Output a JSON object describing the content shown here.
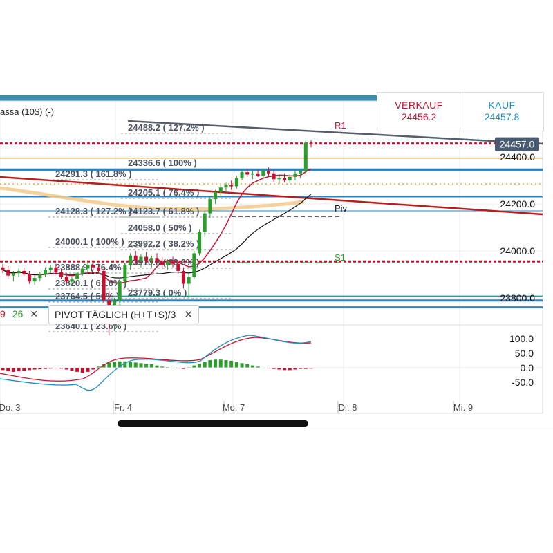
{
  "header": {
    "instrument": "assa (10$) (-)",
    "sell_label": "VERKAUF",
    "sell_price": "24456.2",
    "buy_label": "KAUF",
    "buy_price": "24457.8"
  },
  "price_axis": {
    "current": "24457.0",
    "ticks": [
      "24400.0",
      "24200.0",
      "24000.0",
      "23800.0"
    ]
  },
  "pivot_labels": {
    "r1": "R1",
    "piv": "Piv",
    "s1": "S1"
  },
  "fib_labels": [
    "24488.2 ( 127.2% )",
    "24336.6 ( 100% )",
    "24291.3 ( 161.8% )",
    "24205.1 ( 76.4% )",
    "24128.3 ( 127.2% )",
    "24123.7 ( 61.8% )",
    "24058.0 ( 50% )",
    "24000.1 ( 100% )",
    "23992.2 ( 38.2% )",
    "23910.8 ( 23.6% )",
    "23888.9 ( 76.4% )",
    "23820.1 ( 61.8% )",
    "23779.3 ( 0% )",
    "23764.5 ( 50% )",
    "23640.1 ( 23.6% )"
  ],
  "legend": {
    "ma_fast": "9",
    "ma_slow": "26",
    "close": "✕",
    "pivot_text": "PIVOT  TÄGLICH  (H+T+S)/3",
    "pivot_close": "✕"
  },
  "oscillator_axis": [
    "100.0",
    "50.0",
    "0.0",
    "-50.0"
  ],
  "time_axis": [
    "Do. 3",
    "Fr. 4",
    "Mo. 7",
    "Di. 8",
    "Mi. 9"
  ],
  "colors": {
    "sell": "#c8102e",
    "buy": "#1d8fc4",
    "up_candle": "#2a9d2a",
    "down_candle": "#c8102e",
    "pivot_line": "#2e86c1",
    "header_bar": "#3a8fae"
  },
  "chart_data": {
    "type": "candlestick",
    "timeframe_labels": [
      "Do. 3",
      "Fr. 4",
      "Mo. 7",
      "Di. 8",
      "Mi. 9"
    ],
    "y_range": [
      23620,
      24520
    ],
    "current_price": 24457.0,
    "resistance_r1": 24460,
    "pivot": 24170,
    "support_s1": 23955,
    "candles": [
      [
        23930,
        23945,
        23905,
        23920
      ],
      [
        23920,
        23935,
        23880,
        23895
      ],
      [
        23895,
        23915,
        23870,
        23905
      ],
      [
        23905,
        23925,
        23890,
        23915
      ],
      [
        23915,
        23930,
        23895,
        23900
      ],
      [
        23900,
        23915,
        23860,
        23870
      ],
      [
        23870,
        23895,
        23855,
        23885
      ],
      [
        23885,
        23910,
        23870,
        23900
      ],
      [
        23900,
        23930,
        23890,
        23920
      ],
      [
        23920,
        23940,
        23905,
        23930
      ],
      [
        23930,
        23945,
        23900,
        23910
      ],
      [
        23910,
        23925,
        23880,
        23890
      ],
      [
        23890,
        23905,
        23860,
        23870
      ],
      [
        23870,
        23890,
        23850,
        23880
      ],
      [
        23880,
        23910,
        23870,
        23905
      ],
      [
        23905,
        23935,
        23895,
        23925
      ],
      [
        23925,
        23950,
        23910,
        23940
      ],
      [
        23940,
        23960,
        23920,
        23930
      ],
      [
        23930,
        23945,
        23905,
        23915
      ],
      [
        23915,
        23925,
        23780,
        23790
      ],
      [
        23790,
        23830,
        23640,
        23700
      ],
      [
        23700,
        23800,
        23660,
        23790
      ],
      [
        23790,
        23880,
        23770,
        23870
      ],
      [
        23870,
        23950,
        23850,
        23940
      ],
      [
        23940,
        23990,
        23920,
        23980
      ],
      [
        23980,
        24000,
        23940,
        23960
      ],
      [
        23960,
        23985,
        23930,
        23975
      ],
      [
        23975,
        23995,
        23950,
        23960
      ],
      [
        23960,
        23980,
        23930,
        23970
      ],
      [
        23970,
        23990,
        23945,
        23955
      ],
      [
        23955,
        23975,
        23925,
        23940
      ],
      [
        23940,
        23965,
        23920,
        23955
      ],
      [
        23955,
        23975,
        23930,
        23945
      ],
      [
        23945,
        23960,
        23900,
        23915
      ],
      [
        23915,
        23930,
        23840,
        23860
      ],
      [
        23860,
        23905,
        23800,
        23890
      ],
      [
        23890,
        24000,
        23880,
        23990
      ],
      [
        23990,
        24090,
        23980,
        24080
      ],
      [
        24080,
        24170,
        24060,
        24160
      ],
      [
        24160,
        24230,
        24140,
        24220
      ],
      [
        24220,
        24260,
        24200,
        24250
      ],
      [
        24250,
        24280,
        24230,
        24270
      ],
      [
        24270,
        24290,
        24250,
        24280
      ],
      [
        24280,
        24300,
        24260,
        24275
      ],
      [
        24275,
        24320,
        24265,
        24310
      ],
      [
        24310,
        24345,
        24300,
        24335
      ],
      [
        24335,
        24350,
        24315,
        24325
      ],
      [
        24325,
        24340,
        24305,
        24330
      ],
      [
        24330,
        24345,
        24315,
        24320
      ],
      [
        24320,
        24350,
        24310,
        24340
      ],
      [
        24340,
        24355,
        24320,
        24330
      ],
      [
        24330,
        24345,
        24295,
        24305
      ],
      [
        24305,
        24320,
        24285,
        24310
      ],
      [
        24310,
        24330,
        24290,
        24300
      ],
      [
        24300,
        24325,
        24290,
        24315
      ],
      [
        24315,
        24340,
        24300,
        24330
      ],
      [
        24330,
        24345,
        24310,
        24340
      ],
      [
        24340,
        24470,
        24330,
        24460
      ],
      [
        24460,
        24470,
        24440,
        24455
      ]
    ],
    "oscillator": {
      "range": [
        -70,
        110
      ],
      "histogram": [
        -8,
        -12,
        -14,
        -12,
        -10,
        -8,
        -6,
        -5,
        -4,
        -3,
        -2,
        -3,
        -6,
        -10,
        -14,
        -18,
        -14,
        -6,
        4,
        12,
        18,
        20,
        22,
        22,
        20,
        18,
        16,
        14,
        12,
        8,
        4,
        2,
        0,
        -2,
        -4,
        2,
        8,
        14,
        20,
        26,
        28,
        28,
        26,
        24,
        20,
        16,
        12,
        8,
        4,
        0,
        -2,
        -4,
        -6,
        -8,
        -8,
        -6,
        -4,
        -4,
        -3
      ]
    }
  }
}
